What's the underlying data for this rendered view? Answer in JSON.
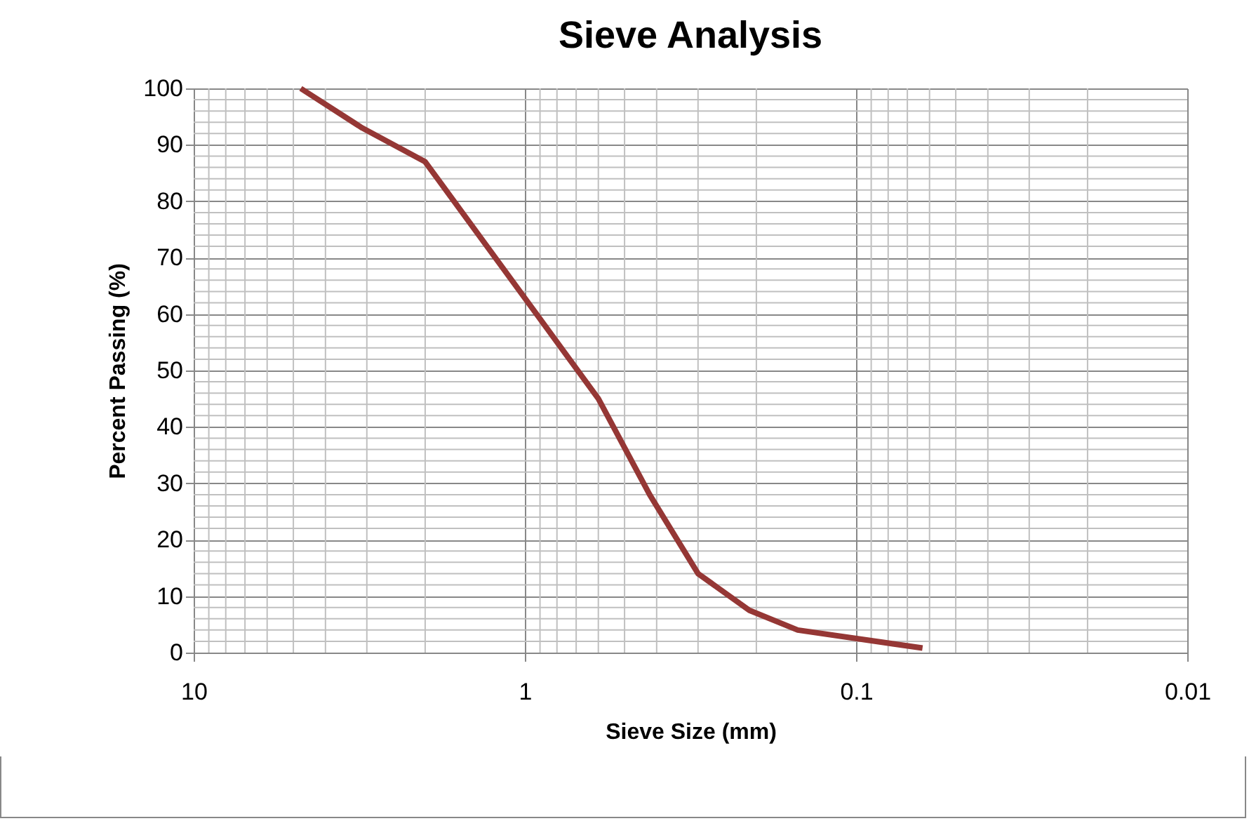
{
  "chart_data": {
    "type": "line",
    "title": "Sieve Analysis",
    "xlabel": "Sieve Size (mm)",
    "ylabel": "Percent Passing (%)",
    "log": "x",
    "grid": true,
    "legend": false,
    "marker": "none",
    "line_style": "solid",
    "xlim": [
      10,
      0.01
    ],
    "xticks": [
      10,
      1,
      0.1,
      0.01
    ],
    "ylim": [
      0,
      100
    ],
    "yticks": [
      0,
      10,
      20,
      30,
      40,
      50,
      60,
      70,
      80,
      90,
      100
    ],
    "x": [
      4.75,
      3.1,
      2.0,
      0.6,
      0.42,
      0.3,
      0.21,
      0.15,
      0.063
    ],
    "series": [
      {
        "color": "#953735",
        "values": [
          100,
          93,
          87,
          45,
          28,
          14,
          7.5,
          4,
          0.8
        ]
      }
    ]
  }
}
